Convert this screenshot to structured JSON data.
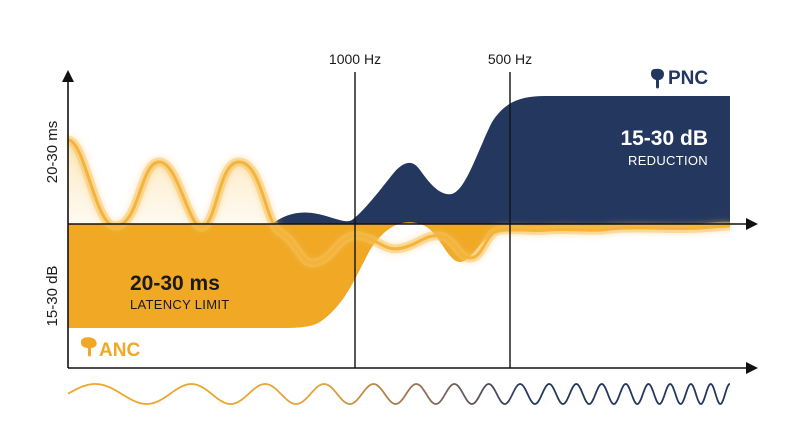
{
  "frequency_markers": [
    "1000 Hz",
    "500 Hz"
  ],
  "y_axis": {
    "upper_label": "20-30 ms",
    "lower_label": "15-30 dB"
  },
  "pnc": {
    "name": "PNC",
    "value": "15-30 dB",
    "caption": "REDUCTION",
    "color": "#24375f"
  },
  "anc": {
    "name": "ANC",
    "value": "20-30 ms",
    "caption": "LATENCY LIMIT",
    "color": "#f0a825"
  },
  "colors": {
    "wave_line": "#f4b43a",
    "axis": "#111111"
  },
  "icons": [
    "earbud-icon",
    "earbud-icon"
  ]
}
